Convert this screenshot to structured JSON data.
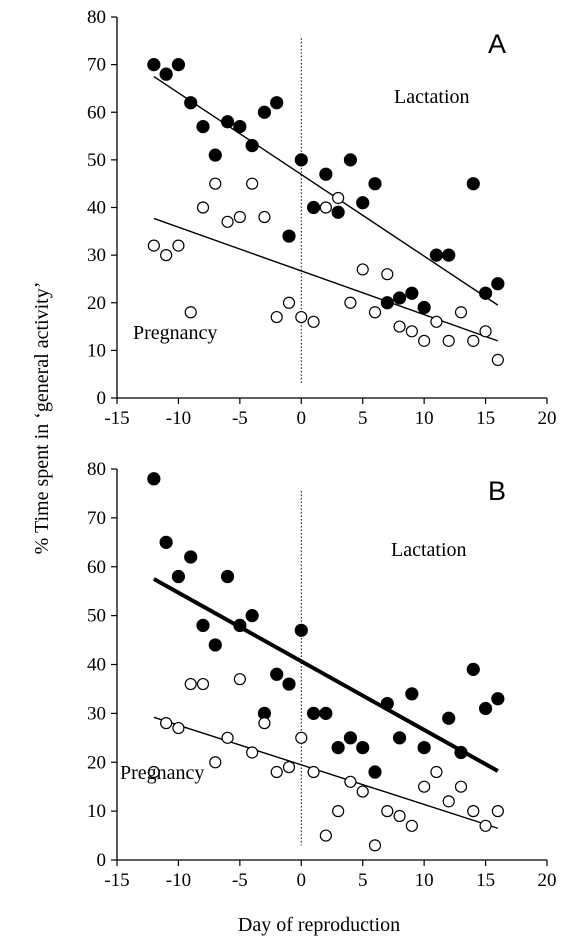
{
  "chart_data": [
    {
      "type": "scatter",
      "panel": "A",
      "xlim": [
        -15,
        20
      ],
      "ylim": [
        0,
        80
      ],
      "x_ticks": [
        -15,
        -10,
        -5,
        0,
        5,
        10,
        15,
        20
      ],
      "y_ticks": [
        0,
        10,
        20,
        30,
        40,
        50,
        60,
        70,
        80
      ],
      "grid": false,
      "reference_line_x": 0,
      "annotations": [
        "Lactation",
        "Pregnancy"
      ],
      "series": [
        {
          "name": "Lactation",
          "marker": "filled-circle",
          "points": [
            [
              -12,
              70
            ],
            [
              -11,
              68
            ],
            [
              -10,
              70
            ],
            [
              -9,
              62
            ],
            [
              -8,
              57
            ],
            [
              -7,
              51
            ],
            [
              -6,
              58
            ],
            [
              -5,
              57
            ],
            [
              -4,
              53
            ],
            [
              -3,
              60
            ],
            [
              -2,
              62
            ],
            [
              -1,
              34
            ],
            [
              0,
              50
            ],
            [
              1,
              40
            ],
            [
              2,
              47
            ],
            [
              3,
              39
            ],
            [
              4,
              50
            ],
            [
              5,
              41
            ],
            [
              6,
              45
            ],
            [
              7,
              20
            ],
            [
              8,
              21
            ],
            [
              9,
              22
            ],
            [
              10,
              19
            ],
            [
              11,
              30
            ],
            [
              12,
              30
            ],
            [
              14,
              45
            ],
            [
              15,
              22
            ],
            [
              16,
              24
            ]
          ],
          "fit": {
            "x": [
              -12,
              16
            ],
            "y": [
              67.5,
              19.5
            ],
            "weight": "thin"
          }
        },
        {
          "name": "Pregnancy",
          "marker": "open-circle",
          "points": [
            [
              -12,
              32
            ],
            [
              -11,
              30
            ],
            [
              -10,
              32
            ],
            [
              -9,
              18
            ],
            [
              -8,
              40
            ],
            [
              -7,
              45
            ],
            [
              -6,
              37
            ],
            [
              -5,
              38
            ],
            [
              -4,
              45
            ],
            [
              -3,
              38
            ],
            [
              -2,
              17
            ],
            [
              -1,
              20
            ],
            [
              0,
              17
            ],
            [
              1,
              16
            ],
            [
              2,
              40
            ],
            [
              3,
              42
            ],
            [
              4,
              20
            ],
            [
              5,
              27
            ],
            [
              6,
              18
            ],
            [
              7,
              26
            ],
            [
              8,
              15
            ],
            [
              9,
              14
            ],
            [
              10,
              12
            ],
            [
              11,
              16
            ],
            [
              12,
              12
            ],
            [
              13,
              18
            ],
            [
              14,
              12
            ],
            [
              15,
              14
            ],
            [
              16,
              8
            ]
          ],
          "fit": {
            "x": [
              -12,
              16
            ],
            "y": [
              37.7,
              12
            ],
            "weight": "thin"
          }
        }
      ]
    },
    {
      "type": "scatter",
      "panel": "B",
      "xlim": [
        -15,
        20
      ],
      "ylim": [
        0,
        80
      ],
      "x_ticks": [
        -15,
        -10,
        -5,
        0,
        5,
        10,
        15,
        20
      ],
      "y_ticks": [
        0,
        10,
        20,
        30,
        40,
        50,
        60,
        70,
        80
      ],
      "grid": false,
      "reference_line_x": 0,
      "annotations": [
        "Lactation",
        "Pregnancy"
      ],
      "series": [
        {
          "name": "Lactation",
          "marker": "filled-circle",
          "points": [
            [
              -12,
              78
            ],
            [
              -11,
              65
            ],
            [
              -10,
              58
            ],
            [
              -9,
              62
            ],
            [
              -8,
              48
            ],
            [
              -7,
              44
            ],
            [
              -6,
              58
            ],
            [
              -5,
              48
            ],
            [
              -4,
              50
            ],
            [
              -3,
              30
            ],
            [
              -2,
              38
            ],
            [
              -1,
              36
            ],
            [
              0,
              47
            ],
            [
              1,
              30
            ],
            [
              2,
              30
            ],
            [
              3,
              23
            ],
            [
              4,
              25
            ],
            [
              5,
              23
            ],
            [
              6,
              18
            ],
            [
              7,
              32
            ],
            [
              8,
              25
            ],
            [
              9,
              34
            ],
            [
              10,
              23
            ],
            [
              12,
              29
            ],
            [
              13,
              22
            ],
            [
              14,
              39
            ],
            [
              15,
              31
            ],
            [
              16,
              33
            ]
          ],
          "fit": {
            "x": [
              -12,
              16
            ],
            "y": [
              57.5,
              18.2
            ],
            "weight": "thick"
          }
        },
        {
          "name": "Pregnancy",
          "marker": "open-circle",
          "points": [
            [
              -12,
              18
            ],
            [
              -11,
              28
            ],
            [
              -10,
              27
            ],
            [
              -9,
              36
            ],
            [
              -8,
              36
            ],
            [
              -7,
              20
            ],
            [
              -6,
              25
            ],
            [
              -5,
              37
            ],
            [
              -4,
              22
            ],
            [
              -3,
              28
            ],
            [
              -2,
              18
            ],
            [
              -1,
              19
            ],
            [
              0,
              25
            ],
            [
              1,
              18
            ],
            [
              2,
              5
            ],
            [
              3,
              10
            ],
            [
              4,
              16
            ],
            [
              5,
              14
            ],
            [
              6,
              3
            ],
            [
              7,
              10
            ],
            [
              8,
              9
            ],
            [
              9,
              7
            ],
            [
              10,
              15
            ],
            [
              11,
              18
            ],
            [
              12,
              12
            ],
            [
              13,
              15
            ],
            [
              14,
              10
            ],
            [
              15,
              7
            ],
            [
              16,
              10
            ]
          ],
          "fit": {
            "x": [
              -12,
              16
            ],
            "y": [
              29.2,
              6.5
            ],
            "weight": "thin"
          }
        }
      ]
    }
  ],
  "panel_labels": {
    "a": "A",
    "b": "B"
  },
  "annotations": {
    "lactation": "Lactation",
    "pregnancy": "Pregnancy"
  },
  "axes": {
    "ylabel": "% Time spent in ‘general activity’",
    "xlabel": "Day of reproduction"
  }
}
